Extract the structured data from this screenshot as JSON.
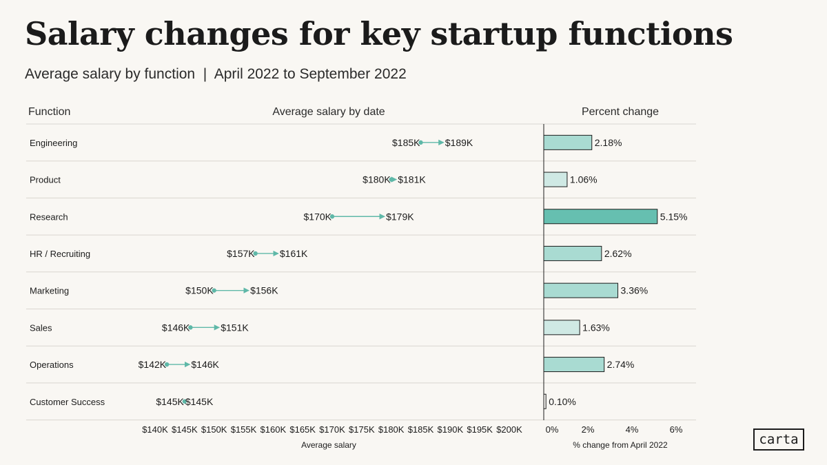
{
  "header": {
    "title": "Salary changes for key startup functions",
    "subtitle": "Average salary by function  |  April 2022 to September 2022"
  },
  "columns": {
    "function": "Function",
    "salary": "Average salary by date",
    "change": "Percent change"
  },
  "logo": {
    "text": "carta"
  },
  "colors": {
    "background": "#f9f7f3",
    "arrow": "#5fb8a8",
    "bar_dark": "#66bfb0",
    "bar_mid": "#a9dbd2",
    "bar_light": "#cfe9e4",
    "bar_stroke": "#1b1b1b",
    "gridline": "#d9d6d0"
  },
  "chart_data": [
    {
      "type": "dumbbell",
      "title": "Average salary by date",
      "xlabel": "Average salary",
      "xlim": [
        140,
        200
      ],
      "ticks": [
        140,
        145,
        150,
        155,
        160,
        165,
        170,
        175,
        180,
        185,
        190,
        195,
        200
      ],
      "tick_labels": [
        "$140K",
        "$145K",
        "$150K",
        "$155K",
        "$160K",
        "$165K",
        "$170K",
        "$175K",
        "$180K",
        "$185K",
        "$190K",
        "$195K",
        "$200K"
      ],
      "categories": [
        "Engineering",
        "Product",
        "Research",
        "HR / Recruiting",
        "Marketing",
        "Sales",
        "Operations",
        "Customer Success"
      ],
      "series": [
        {
          "name": "April 2022",
          "values": [
            185,
            180,
            170,
            157,
            150,
            146,
            142,
            145
          ],
          "labels": [
            "$185K",
            "$180K",
            "$170K",
            "$157K",
            "$150K",
            "$146K",
            "$142K",
            "$145K"
          ]
        },
        {
          "name": "September 2022",
          "values": [
            189,
            181,
            179,
            161,
            156,
            151,
            146,
            145
          ],
          "labels": [
            "$189K",
            "$181K",
            "$179K",
            "$161K",
            "$156K",
            "$151K",
            "$146K",
            "$145K"
          ]
        }
      ]
    },
    {
      "type": "bar",
      "title": "Percent change",
      "xlabel": "% change from April 2022",
      "xlim": [
        0,
        6
      ],
      "ticks": [
        0,
        2,
        4,
        6
      ],
      "tick_labels": [
        "0%",
        "2%",
        "4%",
        "6%"
      ],
      "categories": [
        "Engineering",
        "Product",
        "Research",
        "HR / Recruiting",
        "Marketing",
        "Sales",
        "Operations",
        "Customer Success"
      ],
      "values": [
        2.18,
        1.06,
        5.15,
        2.62,
        3.36,
        1.63,
        2.74,
        0.1
      ],
      "labels": [
        "2.18%",
        "1.06%",
        "5.15%",
        "2.62%",
        "3.36%",
        "1.63%",
        "2.74%",
        "0.10%"
      ]
    }
  ]
}
